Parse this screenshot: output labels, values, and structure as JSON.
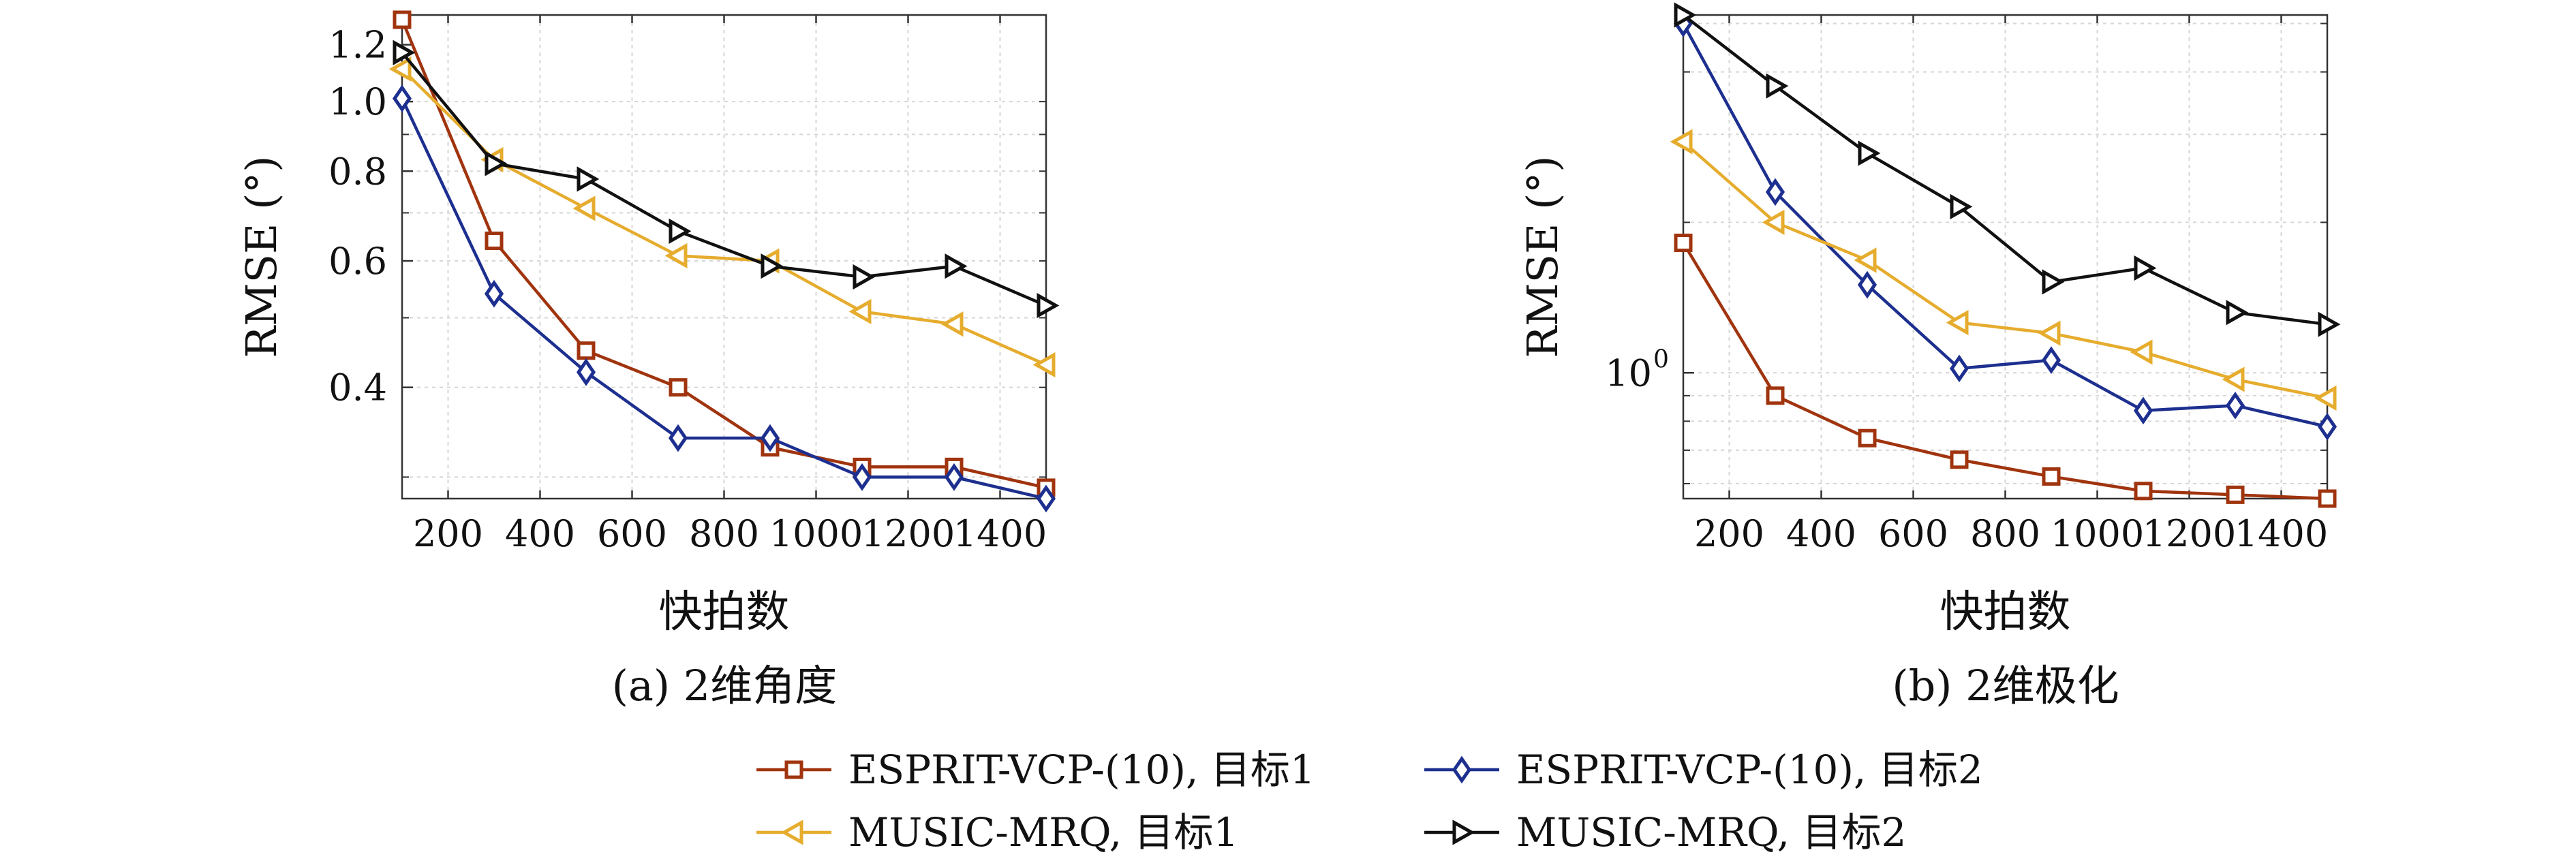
{
  "legend": [
    {
      "label": "ESPRIT-VCP-(10), 目标1",
      "color": "#a0340e",
      "marker": "square"
    },
    {
      "label": "ESPRIT-VCP-(10), 目标2",
      "color": "#1d2f8f",
      "marker": "diamond"
    },
    {
      "label": "MUSIC-MRQ, 目标1",
      "color": "#e6ac2e",
      "marker": "triangle-left"
    },
    {
      "label": "MUSIC-MRQ, 目标2",
      "color": "#111111",
      "marker": "triangle-right"
    }
  ],
  "chart_data": [
    {
      "type": "line",
      "caption": "(a) 2维角度",
      "xlabel": "快拍数",
      "ylabel": "RMSE (°)",
      "yscale": "log",
      "xlim": [
        100,
        1500
      ],
      "ylim": [
        0.28,
        1.32
      ],
      "xticks": [
        200,
        400,
        600,
        800,
        1000,
        1200,
        1400
      ],
      "xtick_labels": [
        "200",
        "400",
        "600",
        "800",
        "1000",
        "1200",
        "1400"
      ],
      "yticks": [
        0.4,
        0.6,
        0.8,
        1.0,
        1.2
      ],
      "ytick_labels": [
        "0.4",
        "0.6",
        "0.8",
        "1.0",
        "1.2"
      ],
      "grid": true,
      "x": [
        100,
        300,
        500,
        700,
        900,
        1100,
        1300,
        1500
      ],
      "series": [
        {
          "name": "ESPRIT-VCP-(10), 目标1",
          "values": [
            1.3,
            0.64,
            0.45,
            0.4,
            0.33,
            0.31,
            0.31,
            0.29
          ]
        },
        {
          "name": "ESPRIT-VCP-(10), 目标2",
          "values": [
            1.01,
            0.54,
            0.42,
            0.34,
            0.34,
            0.3,
            0.3,
            0.28
          ]
        },
        {
          "name": "MUSIC-MRQ, 目标1",
          "values": [
            1.11,
            0.83,
            0.71,
            0.61,
            0.6,
            0.51,
            0.49,
            0.43
          ]
        },
        {
          "name": "MUSIC-MRQ, 目标2",
          "values": [
            1.17,
            0.82,
            0.78,
            0.66,
            0.59,
            0.57,
            0.59,
            0.52
          ]
        }
      ]
    },
    {
      "type": "line",
      "caption": "(b) 2维极化",
      "xlabel": "快拍数",
      "ylabel": "RMSE (°)",
      "yscale": "log",
      "xlim": [
        100,
        1500
      ],
      "ylim": [
        0.56,
        5.2
      ],
      "xticks": [
        200,
        400,
        600,
        800,
        1000,
        1200,
        1400
      ],
      "xtick_labels": [
        "200",
        "400",
        "600",
        "800",
        "1000",
        "1200",
        "1400"
      ],
      "yticks": [
        1
      ],
      "ytick_labels": [
        "10"
      ],
      "ytick_exponents": [
        "0"
      ],
      "grid": true,
      "x": [
        100,
        300,
        500,
        700,
        900,
        1100,
        1300,
        1500
      ],
      "series": [
        {
          "name": "ESPRIT-VCP-(10), 目标1",
          "values": [
            1.82,
            0.9,
            0.74,
            0.67,
            0.62,
            0.58,
            0.57,
            0.56
          ]
        },
        {
          "name": "ESPRIT-VCP-(10), 目标2",
          "values": [
            5.0,
            2.3,
            1.5,
            1.02,
            1.06,
            0.84,
            0.86,
            0.78
          ]
        },
        {
          "name": "MUSIC-MRQ, 目标1",
          "values": [
            2.9,
            2.0,
            1.68,
            1.26,
            1.2,
            1.1,
            0.97,
            0.89
          ]
        },
        {
          "name": "MUSIC-MRQ, 目标2",
          "values": [
            5.2,
            3.75,
            2.75,
            2.15,
            1.52,
            1.62,
            1.32,
            1.25
          ]
        }
      ]
    }
  ]
}
